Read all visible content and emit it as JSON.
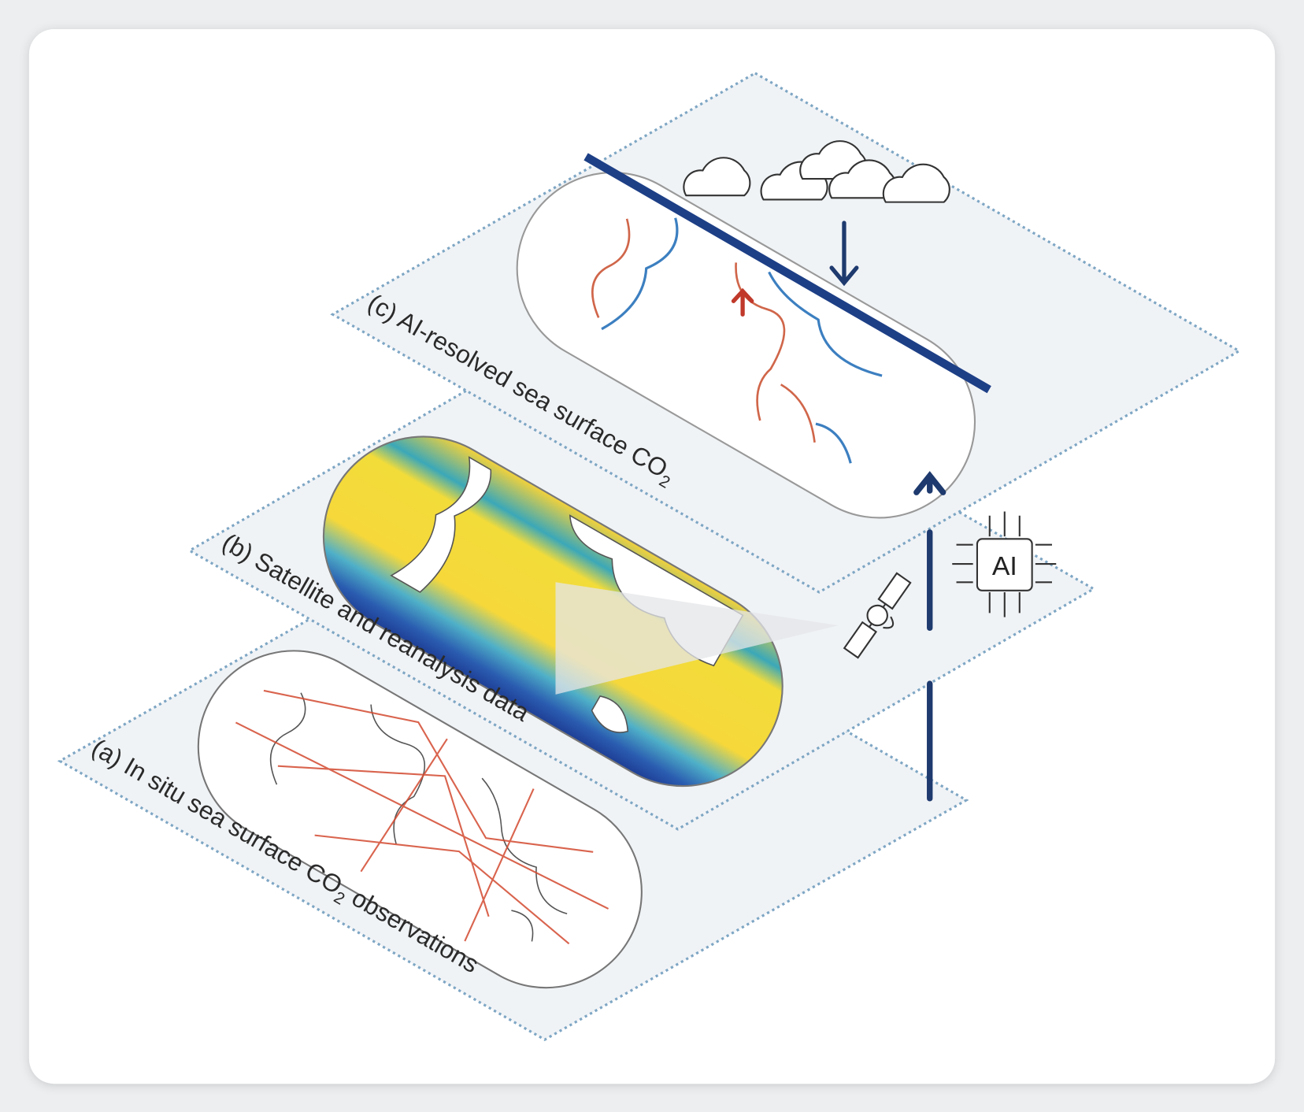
{
  "layers": [
    {
      "text": "(c) AI-resolved sea surface CO",
      "subscript": "2"
    },
    {
      "text": "(b) Satellite and reanalysis data"
    },
    {
      "text": "(a) In situ sea surface CO",
      "subscript": "2",
      "suffix": " observations"
    }
  ],
  "ai_chip": {
    "label": "AI"
  }
}
